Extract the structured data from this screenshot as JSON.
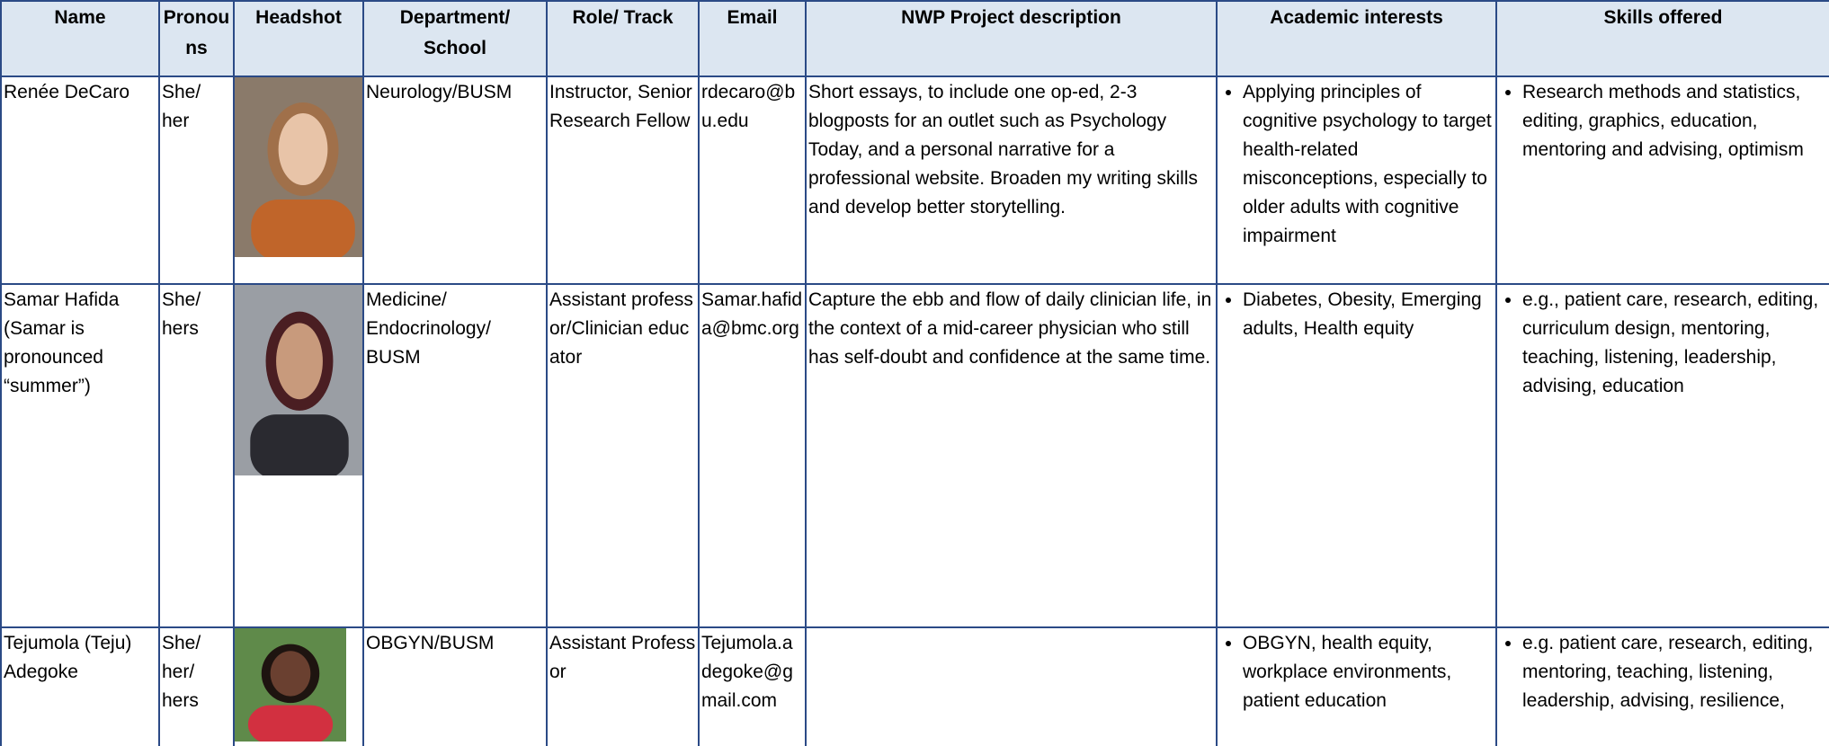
{
  "table": {
    "headers": [
      "Name",
      "Pronouns",
      "Headshot",
      "Department/ School",
      "Role/ Track",
      "Email",
      "NWP Project description",
      "Academic interests",
      "Skills offered"
    ],
    "rows": [
      {
        "name": "Renée DeCaro",
        "pronouns": "She/ her",
        "department": "Neurology/BUSM",
        "role": "Instructor, Senior Research Fellow",
        "email": "rdecaro@bu.edu",
        "description": "Short essays, to include one op-ed, 2-3 blogposts for an outlet such as Psychology Today, and a personal narrative for a professional website. Broaden my writing skills and develop better storytelling.",
        "interests": [
          "Applying principles of cognitive psychology to target health-related misconceptions, especially to older adults with cognitive impairment"
        ],
        "skills": [
          "Research methods and statistics, editing, graphics, education, mentoring and advising, optimism"
        ]
      },
      {
        "name": "Samar Hafida (Samar is pronounced “summer”)",
        "pronouns": "She/ hers",
        "department": "Medicine/ Endocrinology/ BUSM",
        "role": "Assistant professor/Clinician educator",
        "email": "Samar.hafida@bmc.org",
        "description": "Capture the ebb and flow of daily clinician life, in the context of a mid-career physician who still has self-doubt and confidence at the same time.",
        "interests": [
          "Diabetes, Obesity, Emerging adults, Health equity"
        ],
        "skills": [
          "e.g., patient care, research, editing, curriculum design, mentoring, teaching, listening, leadership, advising, education"
        ]
      },
      {
        "name": "Tejumola (Teju) Adegoke",
        "pronouns": "She/ her/ hers",
        "department": "OBGYN/BUSM",
        "role": "Assistant Professor",
        "email": "Tejumola.adegoke@gmail.com",
        "interests": [
          "OBGYN, health equity, workplace environments, patient education"
        ],
        "skills": [
          "e.g. patient care, research, editing, mentoring, teaching, listening, leadership, advising, resilience,"
        ]
      }
    ]
  }
}
